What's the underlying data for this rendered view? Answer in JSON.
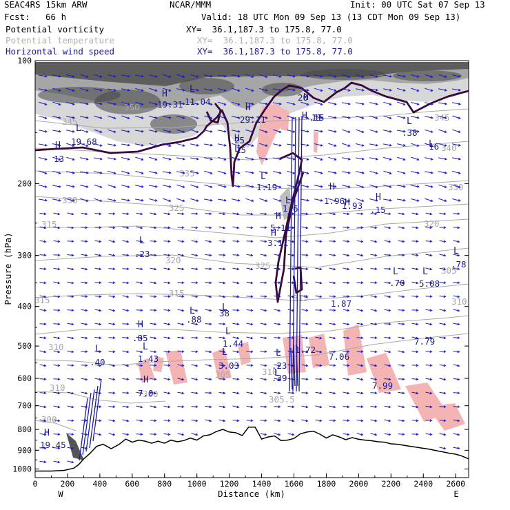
{
  "header": {
    "model": "SEAC4RS 15km ARW",
    "org": "NCAR/MMM",
    "init": "Init: 00 UTC Sat 07 Sep 13",
    "fcst_label": "Fcst:",
    "fcst_value": "66 h",
    "valid": "Valid: 18 UTC Mon 09 Sep 13 (13 CDT Mon 09 Sep 13)"
  },
  "legend": [
    {
      "name": "Potential vorticity",
      "xy": "XY=  36.1,187.3 to 175.8, 77.0",
      "color": "#000000"
    },
    {
      "name": "Potential temperature",
      "xy": "XY=  36.1,187.3 to 175.8, 77.0",
      "color": "#b0b0b0"
    },
    {
      "name": "Horizontal wind speed",
      "xy": "XY=  36.1,187.3 to 175.8, 77.0",
      "color": "#1a1a8c"
    }
  ],
  "colors": {
    "axis": "#000000",
    "theta": "#a8a8a8",
    "wind": "#1a1acc",
    "wind_label": "#1a1a8c",
    "pv_line": "#3a0a3a",
    "pink": "#f4b4b4",
    "terrain": "#000000"
  },
  "chart_data": {
    "type": "cross-section",
    "xlabel": "Distance (km)",
    "ylabel": "Pressure (hPa)",
    "xlim": [
      0,
      2680
    ],
    "ylim": [
      1050,
      100
    ],
    "x_ticks": [
      "0",
      "200",
      "400",
      "600",
      "800",
      "1000",
      "1200",
      "1400",
      "1600",
      "1800",
      "2000",
      "2200",
      "2400",
      "2600"
    ],
    "y_ticks": [
      "100",
      "200",
      "300",
      "400",
      "500",
      "600",
      "700",
      "800",
      "900",
      "1000"
    ],
    "x_endpoints": {
      "left": "W",
      "right": "E"
    },
    "terrain_pressure": {
      "x": [
        0,
        100,
        180,
        240,
        270,
        300,
        340,
        380,
        420,
        470,
        520,
        560,
        600,
        640,
        680,
        720,
        760,
        800,
        840,
        880,
        920,
        960,
        1000,
        1040,
        1080,
        1120,
        1160,
        1200,
        1240,
        1280,
        1320,
        1360,
        1400,
        1440,
        1480,
        1520,
        1560,
        1600,
        1640,
        1680,
        1720,
        1760,
        1800,
        1840,
        1880,
        1920,
        1960,
        2000,
        2040,
        2080,
        2120,
        2160,
        2200,
        2240,
        2280,
        2320,
        2360,
        2400,
        2440,
        2480,
        2520,
        2560,
        2600,
        2640,
        2680
      ],
      "p": [
        1012,
        1012,
        1008,
        995,
        975,
        945,
        915,
        880,
        870,
        892,
        870,
        845,
        860,
        850,
        855,
        865,
        855,
        865,
        850,
        858,
        852,
        840,
        850,
        830,
        825,
        810,
        800,
        812,
        815,
        828,
        790,
        790,
        845,
        835,
        830,
        852,
        850,
        842,
        820,
        812,
        808,
        822,
        840,
        825,
        835,
        848,
        838,
        846,
        850,
        853,
        858,
        860,
        868,
        870,
        875,
        880,
        885,
        890,
        895,
        902,
        908,
        915,
        920,
        930,
        945
      ]
    },
    "theta_labels": [
      "350",
      "345",
      "345",
      "340",
      "335",
      "330",
      "330",
      "325",
      "325",
      "320",
      "320",
      "315",
      "315",
      "315",
      "315",
      "310",
      "310",
      "305",
      "305.5",
      "300",
      "300",
      "305",
      "310",
      "310"
    ],
    "pv_extrema_labels": [
      "H",
      "L",
      "H",
      "L",
      "H",
      "L",
      "H",
      "L",
      "L",
      "L",
      "L",
      "L",
      "L",
      "L",
      "H",
      "H",
      "L",
      "L",
      "H",
      "H",
      "L",
      "L",
      "H",
      "H",
      "H",
      "H",
      "H",
      "H",
      "L",
      "L",
      "L",
      "L",
      "L"
    ],
    "pv_values": [
      "19.45",
      "19.68",
      "13",
      ".40",
      ".85",
      "1.43",
      "7.0",
      ".23",
      ".88",
      "38",
      "1.44",
      "3.03",
      ".23",
      ".39",
      "3.11",
      "5.11",
      "1.6",
      "1.19",
      "29.11",
      "25",
      "15",
      "11.04",
      "19.31",
      "20",
      "11",
      "1.96",
      "1.93",
      ".15",
      ".38",
      "16",
      ".78",
      ".70",
      "5.08",
      "7.79",
      "7.99",
      "1.87",
      "1.72",
      "7.06",
      ".15"
    ]
  }
}
